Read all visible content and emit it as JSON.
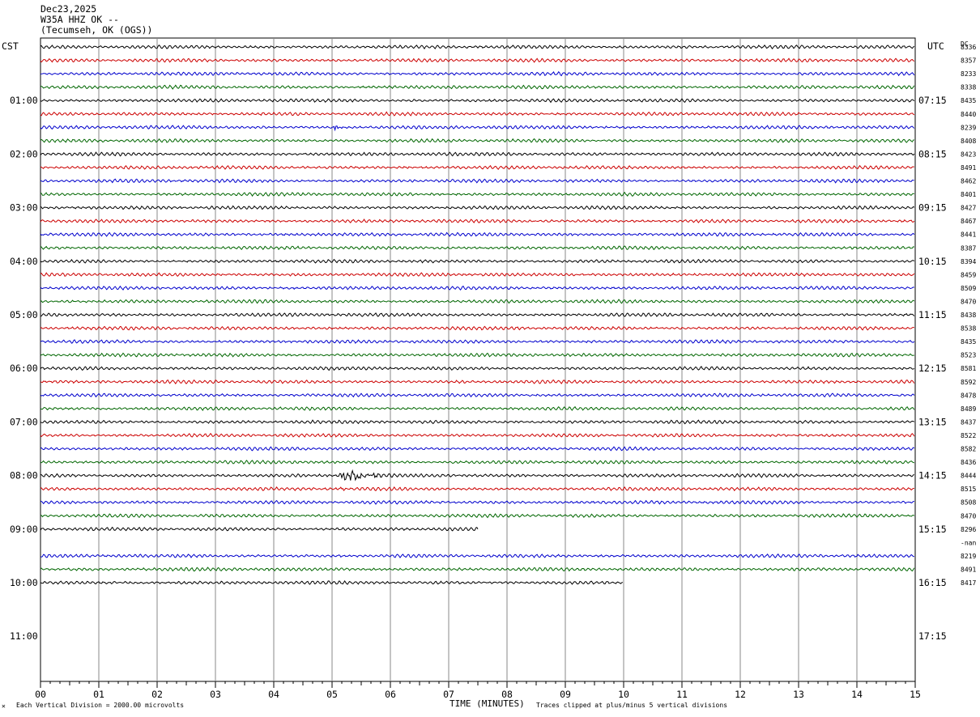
{
  "header": {
    "date": "Dec23,2025",
    "station": "W35A HHZ OK --",
    "location": "(Tecumseh, OK (OGS))"
  },
  "left_axis_label": "CST",
  "right_axis_label": "UTC",
  "dc_label": "DC",
  "footer": {
    "corner_mark": "✕",
    "scale_note": "Each Vertical Division = 2000.00 microvolts",
    "clip_note": "Traces clipped at plus/minus 5 vertical divisions"
  },
  "colors": {
    "trace_cycle": [
      "#000000",
      "#cc0000",
      "#0000cc",
      "#006600"
    ],
    "grid": "#888888",
    "background": "#ffffff"
  },
  "chart_data": {
    "type": "line",
    "xlabel": "TIME (MINUTES)",
    "x_ticks": [
      "00",
      "01",
      "02",
      "03",
      "04",
      "05",
      "06",
      "07",
      "08",
      "09",
      "10",
      "11",
      "12",
      "13",
      "14",
      "15"
    ],
    "xlim": [
      0,
      15
    ],
    "cst_hours": [
      "01:00",
      "02:00",
      "03:00",
      "04:00",
      "05:00",
      "06:00",
      "07:00",
      "08:00",
      "09:00",
      "10:00",
      "11:00"
    ],
    "utc_hours": [
      "07:15",
      "08:15",
      "09:15",
      "10:15",
      "11:15",
      "12:15",
      "13:15",
      "14:15",
      "15:15",
      "16:15",
      "17:15"
    ],
    "rows_per_hour": 4,
    "first_hour_row": 4,
    "total_rows": 48,
    "traces": [
      {
        "row": 0,
        "dc": "8336",
        "end_min": 15
      },
      {
        "row": 1,
        "dc": "8357",
        "end_min": 15
      },
      {
        "row": 2,
        "dc": "8233",
        "end_min": 15
      },
      {
        "row": 3,
        "dc": "8338",
        "end_min": 15
      },
      {
        "row": 4,
        "dc": "8435",
        "end_min": 15
      },
      {
        "row": 5,
        "dc": "8440",
        "end_min": 15
      },
      {
        "row": 6,
        "dc": "8239",
        "end_min": 15
      },
      {
        "row": 7,
        "dc": "8408",
        "end_min": 15
      },
      {
        "row": 8,
        "dc": "8423",
        "end_min": 15
      },
      {
        "row": 9,
        "dc": "8491",
        "end_min": 15
      },
      {
        "row": 10,
        "dc": "8462",
        "end_min": 15
      },
      {
        "row": 11,
        "dc": "8401",
        "end_min": 15
      },
      {
        "row": 12,
        "dc": "8427",
        "end_min": 15
      },
      {
        "row": 13,
        "dc": "8467",
        "end_min": 15
      },
      {
        "row": 14,
        "dc": "8441",
        "end_min": 15
      },
      {
        "row": 15,
        "dc": "8387",
        "end_min": 15
      },
      {
        "row": 16,
        "dc": "8394",
        "end_min": 15
      },
      {
        "row": 17,
        "dc": "8459",
        "end_min": 15
      },
      {
        "row": 18,
        "dc": "8509",
        "end_min": 15
      },
      {
        "row": 19,
        "dc": "8470",
        "end_min": 15
      },
      {
        "row": 20,
        "dc": "8438",
        "end_min": 15
      },
      {
        "row": 21,
        "dc": "8538",
        "end_min": 15
      },
      {
        "row": 22,
        "dc": "8435",
        "end_min": 15
      },
      {
        "row": 23,
        "dc": "8523",
        "end_min": 15
      },
      {
        "row": 24,
        "dc": "8581",
        "end_min": 15
      },
      {
        "row": 25,
        "dc": "8592",
        "end_min": 15
      },
      {
        "row": 26,
        "dc": "8478",
        "end_min": 15
      },
      {
        "row": 27,
        "dc": "8489",
        "end_min": 15
      },
      {
        "row": 28,
        "dc": "8437",
        "end_min": 15
      },
      {
        "row": 29,
        "dc": "8522",
        "end_min": 15
      },
      {
        "row": 30,
        "dc": "8582",
        "end_min": 15
      },
      {
        "row": 31,
        "dc": "8436",
        "end_min": 15
      },
      {
        "row": 32,
        "dc": "8444",
        "end_min": 15
      },
      {
        "row": 33,
        "dc": "8515",
        "end_min": 15
      },
      {
        "row": 34,
        "dc": "8508",
        "end_min": 15
      },
      {
        "row": 35,
        "dc": "8470",
        "end_min": 15
      },
      {
        "row": 36,
        "dc": "8296",
        "end_min": 7.5
      },
      {
        "row": 37,
        "dc": "-nan",
        "end_min": 0
      },
      {
        "row": 38,
        "dc": "8219",
        "end_min": 15
      },
      {
        "row": 39,
        "dc": "8491",
        "end_min": 15
      },
      {
        "row": 40,
        "dc": "8417",
        "end_min": 10
      }
    ],
    "events": [
      {
        "row": 6,
        "start_min": 5.0,
        "end_min": 5.2,
        "amp": "medium"
      },
      {
        "row": 32,
        "start_min": 5.05,
        "end_min": 5.9,
        "amp": "large"
      },
      {
        "row": 33,
        "start_min": 5.1,
        "end_min": 5.4,
        "amp": "small"
      }
    ]
  }
}
